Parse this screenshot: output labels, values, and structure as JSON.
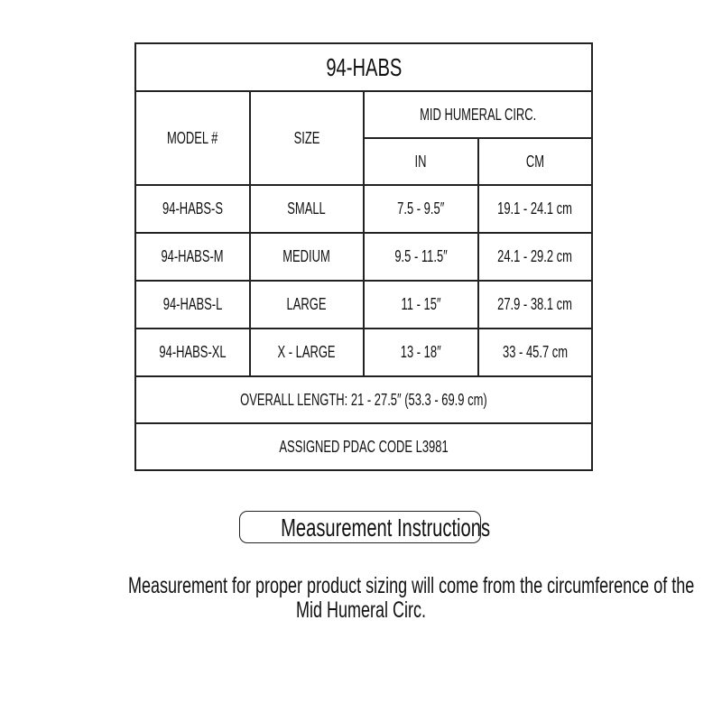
{
  "table": {
    "title": "94-HABS",
    "headers": {
      "model": "MODEL #",
      "size": "SIZE",
      "group": "MID HUMERAL CIRC.",
      "in": "IN",
      "cm": "CM"
    },
    "rows": [
      {
        "model": "94-HABS-S",
        "size": "SMALL",
        "in": "7.5 - 9.5″",
        "cm": "19.1 - 24.1 cm"
      },
      {
        "model": "94-HABS-M",
        "size": "MEDIUM",
        "in": "9.5 - 11.5″",
        "cm": "24.1 - 29.2 cm"
      },
      {
        "model": "94-HABS-L",
        "size": "LARGE",
        "in": "11 - 15″",
        "cm": "27.9 - 38.1 cm"
      },
      {
        "model": "94-HABS-XL",
        "size": "X - LARGE",
        "in": "13 - 18″",
        "cm": "33 - 45.7 cm"
      }
    ],
    "overall_length": "OVERALL LENGTH: 21 - 27.5″ (53.3 - 69.9 cm)",
    "pdac_code": "ASSIGNED PDAC CODE L3981"
  },
  "instructions": {
    "button_label": "Measurement Instructions",
    "line1": "Measurement for proper product sizing will come from the circumference of the",
    "line2": "Mid Humeral Circ."
  }
}
